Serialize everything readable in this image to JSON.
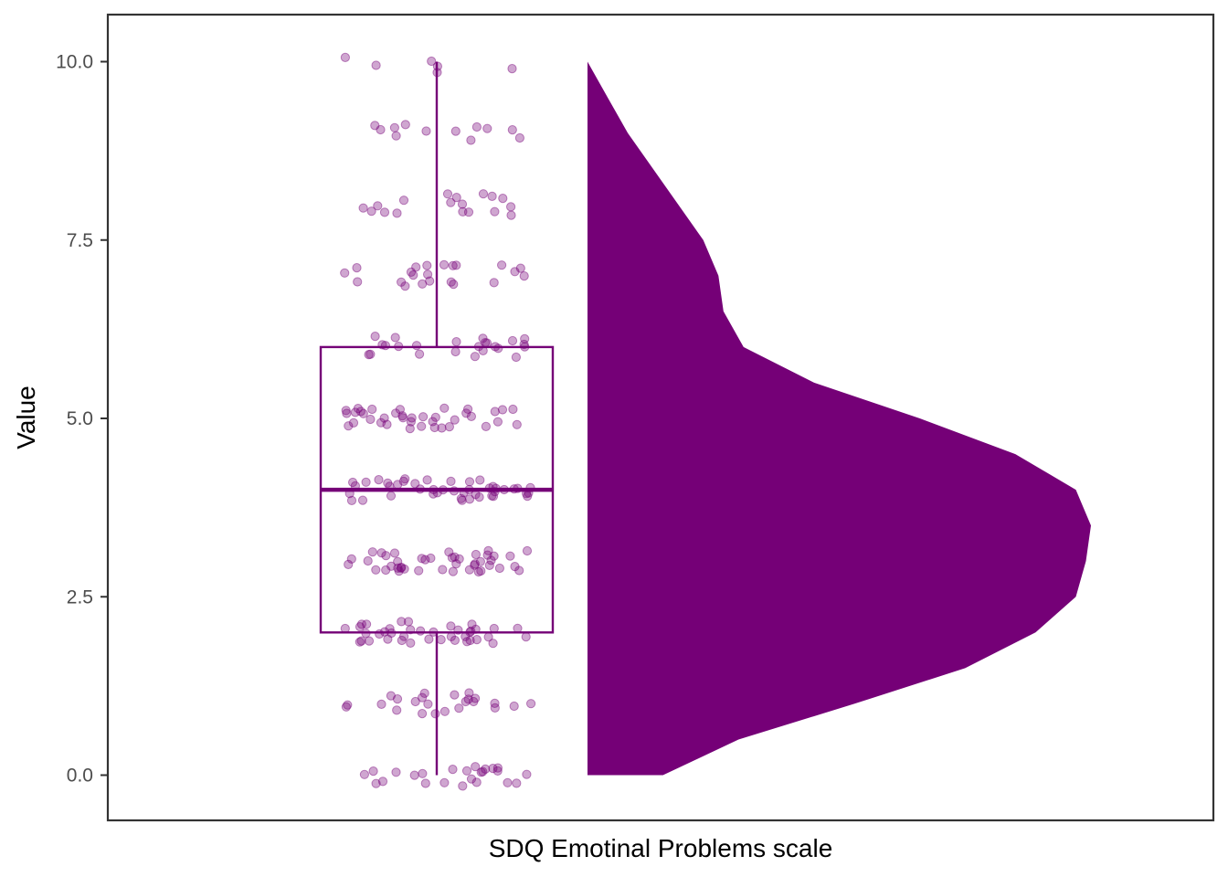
{
  "chart_data": {
    "type": "raincloud",
    "title": "",
    "xlabel": "SDQ Emotinal Problems scale",
    "ylabel": "Value",
    "ylim": [
      -0.62,
      10.67
    ],
    "yticks": [
      0.0,
      2.5,
      5.0,
      7.5,
      10.0
    ],
    "ytick_labels": [
      "0.0",
      "2.5",
      "5.0",
      "7.5",
      "10.0"
    ],
    "grid": false,
    "legend": "none",
    "color": "#750077",
    "boxplot": {
      "min": 0,
      "q1": 2,
      "median": 4,
      "q3": 6,
      "max": 10
    },
    "density": [
      {
        "y": 0.0,
        "d": 0.15
      },
      {
        "y": 0.5,
        "d": 0.3
      },
      {
        "y": 1.0,
        "d": 0.53
      },
      {
        "y": 1.5,
        "d": 0.75
      },
      {
        "y": 2.0,
        "d": 0.89
      },
      {
        "y": 2.5,
        "d": 0.97
      },
      {
        "y": 3.0,
        "d": 0.99
      },
      {
        "y": 3.5,
        "d": 1.0
      },
      {
        "y": 4.0,
        "d": 0.97
      },
      {
        "y": 4.5,
        "d": 0.85
      },
      {
        "y": 5.0,
        "d": 0.66
      },
      {
        "y": 5.5,
        "d": 0.45
      },
      {
        "y": 6.0,
        "d": 0.31
      },
      {
        "y": 6.5,
        "d": 0.27
      },
      {
        "y": 7.0,
        "d": 0.26
      },
      {
        "y": 7.5,
        "d": 0.23
      },
      {
        "y": 8.0,
        "d": 0.18
      },
      {
        "y": 8.5,
        "d": 0.13
      },
      {
        "y": 9.0,
        "d": 0.08
      },
      {
        "y": 9.5,
        "d": 0.04
      },
      {
        "y": 10.0,
        "d": 0.0
      }
    ],
    "points": [
      {
        "value": 0,
        "count": 24
      },
      {
        "value": 1,
        "count": 24
      },
      {
        "value": 2,
        "count": 40
      },
      {
        "value": 3,
        "count": 44
      },
      {
        "value": 4,
        "count": 44
      },
      {
        "value": 5,
        "count": 38
      },
      {
        "value": 6,
        "count": 24
      },
      {
        "value": 7,
        "count": 22
      },
      {
        "value": 8,
        "count": 18
      },
      {
        "value": 9,
        "count": 12
      },
      {
        "value": 10,
        "count": 6
      }
    ]
  }
}
